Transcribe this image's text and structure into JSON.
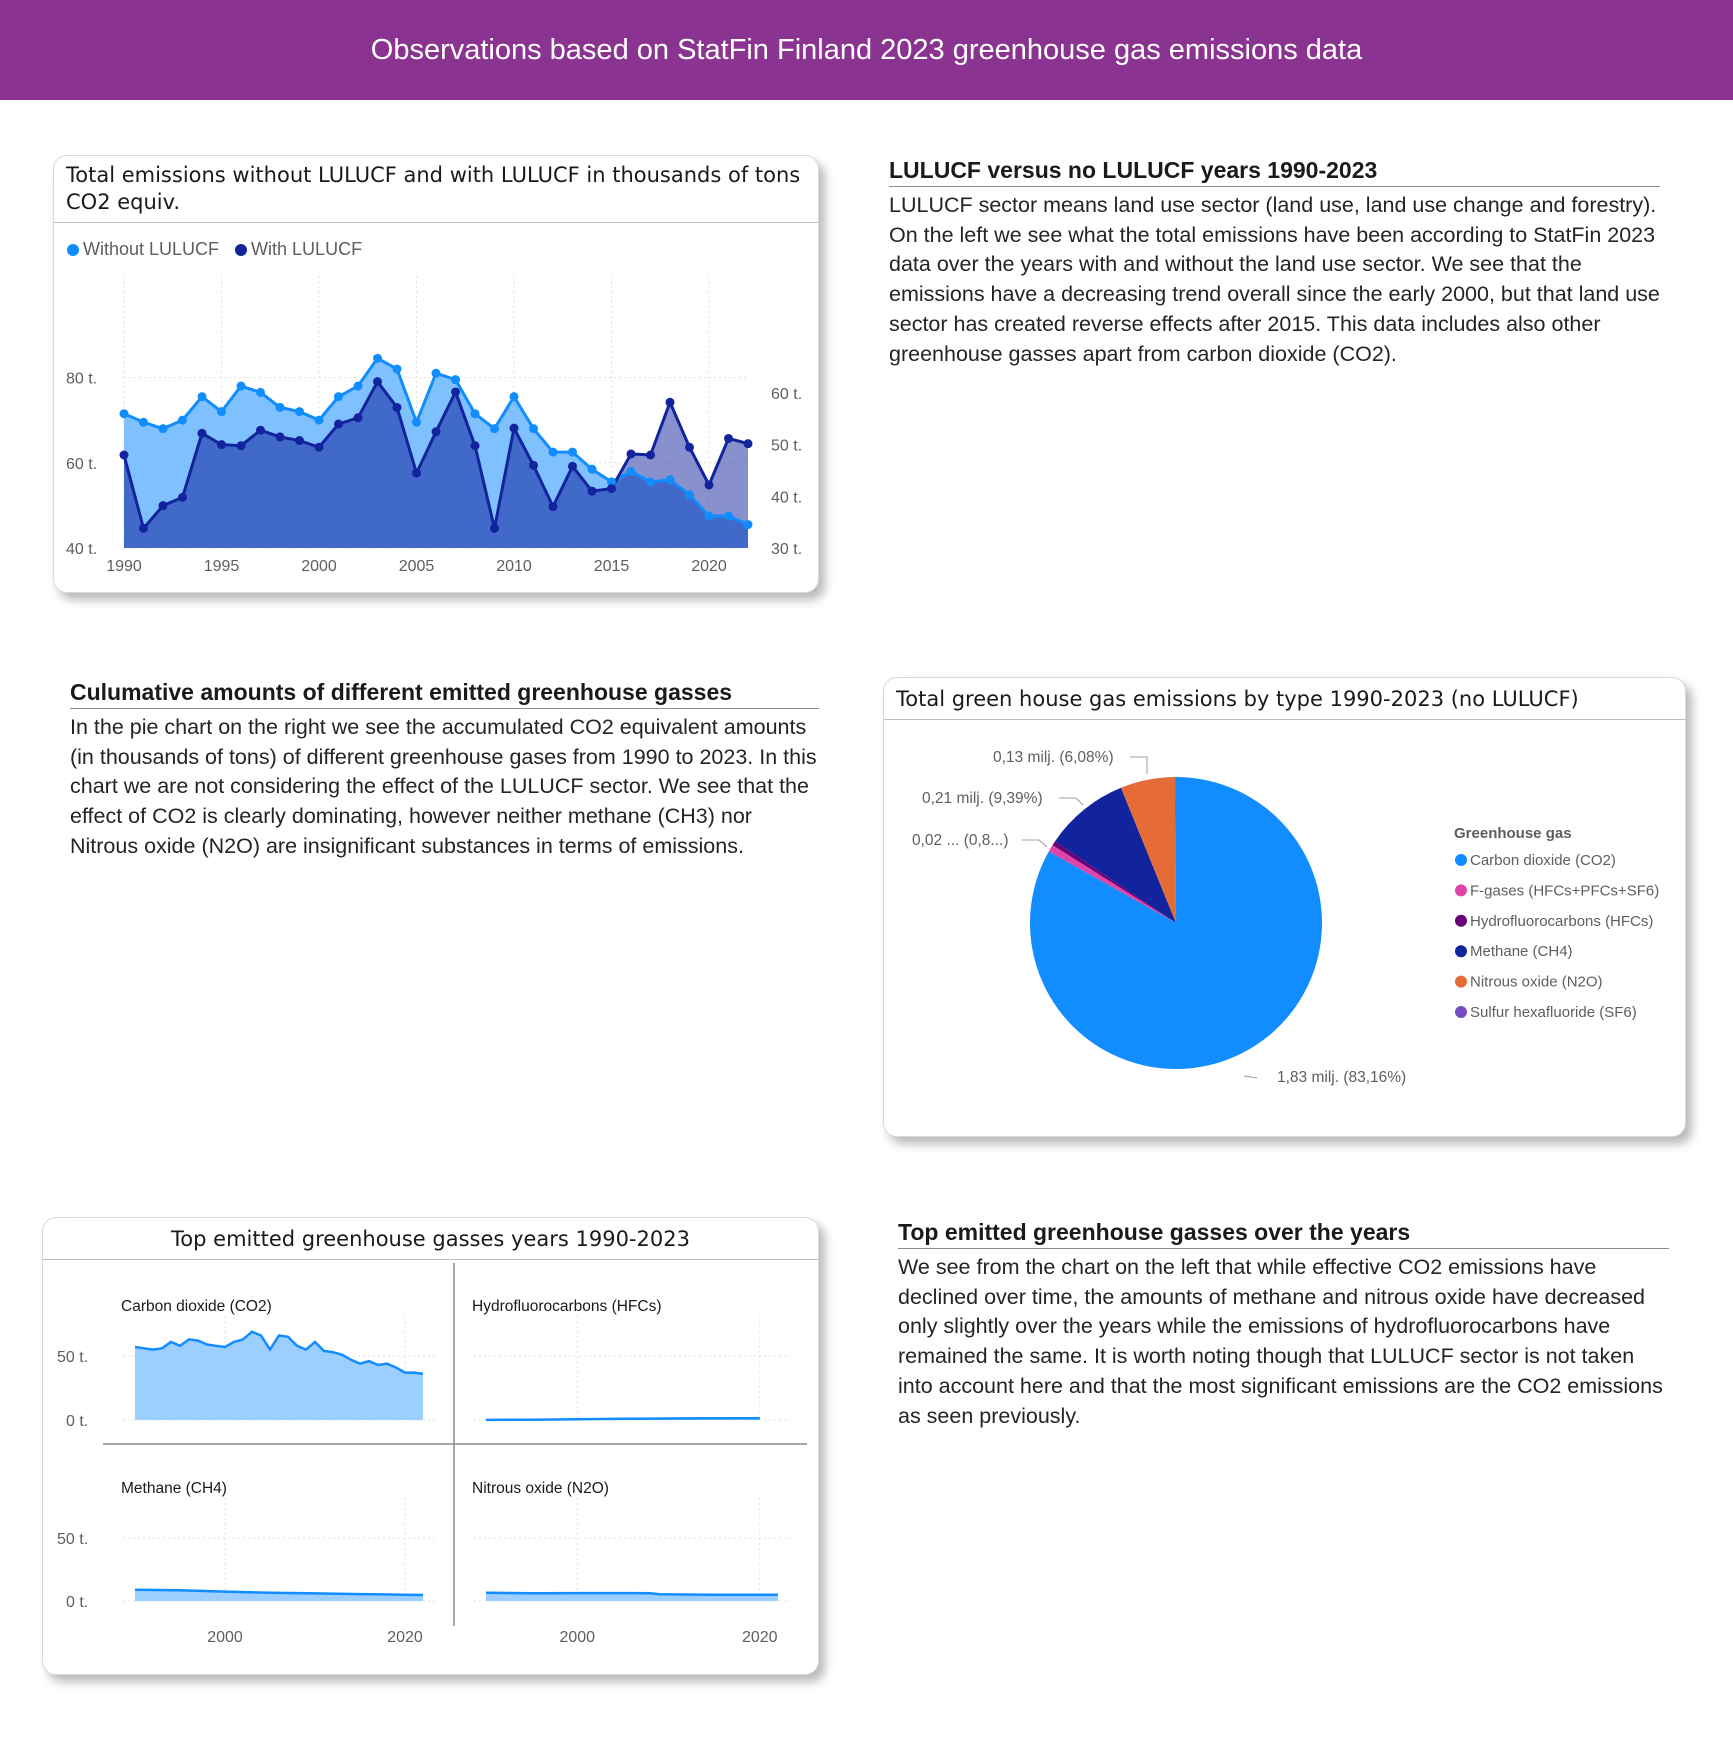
{
  "page_title": "Observations based on StatFin Finland 2023 greenhouse gas emissions data",
  "colors": {
    "banner": "#8a3390",
    "without_lulucf": "#118dff",
    "with_lulucf": "#12239e",
    "co2": "#118dff",
    "fgases": "#e044a7",
    "hfcs": "#6b007b",
    "ch4": "#12239e",
    "n2o": "#e66c37",
    "sf6": "#744ec2"
  },
  "area_card": {
    "title": "Total emissions without LULUCF and with LULUCF in thousands of tons CO2 equiv.",
    "legend": [
      "Without LULUCF",
      "With LULUCF"
    ]
  },
  "text_lulucf": {
    "heading": "LULUCF versus no LULUCF years 1990-2023",
    "body": "LULUCF sector means land use sector (land use, land use change and forestry). On the left we see what the total emissions have been according to StatFin 2023 data over the years with and without the land use sector. We see that the emissions have a decreasing trend overall since the early 2000, but that land use sector has created reverse effects after 2015. This data includes also other greenhouse gasses apart from carbon dioxide (CO2)."
  },
  "text_cumulative": {
    "heading": "Culumative amounts of different emitted greenhouse gasses",
    "body": "In the pie chart on the right we see the accumulated CO2 equivalent amounts (in thousands of tons) of different greenhouse gases from 1990 to 2023. In this chart we are not considering the effect of the LULUCF sector.  We see that the effect of CO2 is clearly dominating, however neither methane (CH3) nor Nitrous oxide (N2O) are insignificant substances in terms of emissions."
  },
  "pie_card": {
    "title": "Total green house gas emissions by type 1990-2023 (no LULUCF)",
    "legend_title": "Greenhouse gas"
  },
  "text_top": {
    "heading": "Top emitted greenhouse gasses over the years",
    "body": "We see from the chart on the left that while effective CO2 emissions have declined over time, the amounts of methane and nitrous oxide have decreased only slightly over the years while the emissions of hydrofluorocarbons have remained the same. It is worth noting though that LULUCF sector is not taken into account here and that the most significant emissions are the CO2 emissions as seen previously."
  },
  "small_card": {
    "title": "Top emitted greenhouse gasses years 1990-2023"
  },
  "chart_data": [
    {
      "id": "lulucf_area",
      "type": "area",
      "title": "Total emissions without LULUCF and with LULUCF in thousands of tons CO2 equiv.",
      "legend_position": "top-left",
      "x": [
        1990,
        1991,
        1992,
        1993,
        1994,
        1995,
        1996,
        1997,
        1998,
        1999,
        2000,
        2001,
        2002,
        2003,
        2004,
        2005,
        2006,
        2007,
        2008,
        2009,
        2010,
        2011,
        2012,
        2013,
        2014,
        2015,
        2016,
        2017,
        2018,
        2019,
        2020,
        2021,
        2022
      ],
      "x_ticks": [
        "1990",
        "1995",
        "2000",
        "2005",
        "2010",
        "2015",
        "2020"
      ],
      "y_left_ticks": [
        "40 t.",
        "60 t.",
        "80 t."
      ],
      "y_right_ticks": [
        "30 t.",
        "40 t.",
        "50 t.",
        "60 t."
      ],
      "y_left_range": [
        40,
        90
      ],
      "y_right_range": [
        30,
        65
      ],
      "grid": true,
      "series": [
        {
          "name": "Without LULUCF",
          "axis": "left",
          "values": [
            71.5,
            69.5,
            68.0,
            70.0,
            75.5,
            72.0,
            78.0,
            76.5,
            73.0,
            72.0,
            70.0,
            75.5,
            78.0,
            84.5,
            82.0,
            69.5,
            81.0,
            79.5,
            71.5,
            68.0,
            75.5,
            68.0,
            62.5,
            62.5,
            58.5,
            55.5,
            58.0,
            55.5,
            56.0,
            52.5,
            47.5,
            47.5,
            45.5
          ]
        },
        {
          "name": "With LULUCF",
          "axis": "right",
          "values": [
            48.0,
            33.8,
            38.2,
            39.8,
            52.2,
            50.0,
            49.8,
            52.8,
            51.5,
            50.8,
            49.5,
            54.0,
            55.2,
            62.2,
            57.2,
            44.5,
            52.5,
            60.2,
            49.8,
            33.8,
            53.2,
            46.0,
            38.0,
            45.8,
            41.0,
            41.5,
            48.2,
            48.0,
            58.2,
            49.5,
            42.2,
            51.2,
            50.2
          ]
        }
      ]
    },
    {
      "id": "gas_pie",
      "type": "pie",
      "title": "Total green house gas emissions by type 1990-2023 (no LULUCF)",
      "legend_title": "Greenhouse gas",
      "legend_position": "right",
      "categories": [
        "Carbon dioxide (CO2)",
        "F-gases (HFCs+PFCs+SF6)",
        "Hydrofluorocarbons (HFCs)",
        "Methane (CH4)",
        "Nitrous oxide (N2O)",
        "Sulfur hexafluoride (SF6)"
      ],
      "values": [
        83.16,
        0.8,
        0.5,
        9.39,
        6.08,
        0.07
      ],
      "data_labels": [
        {
          "category": "Carbon dioxide (CO2)",
          "text": "1,83 milj. (83,16%)"
        },
        {
          "category": "F-gases (HFCs+PFCs+SF6)",
          "text": "0,02 ... (0,8...)"
        },
        {
          "category": "Methane (CH4)",
          "text": "0,21 milj. (9,39%)"
        },
        {
          "category": "Nitrous oxide (N2O)",
          "text": "0,13 milj. (6,08%)"
        }
      ]
    },
    {
      "id": "small_multiples",
      "type": "area",
      "title": "Top emitted greenhouse gasses years 1990-2023",
      "x_ticks": [
        "2000",
        "2020"
      ],
      "y_ticks": [
        "0 t.",
        "50 t."
      ],
      "y_range": [
        0,
        70
      ],
      "x_range": [
        1990,
        2022
      ],
      "panels": [
        {
          "name": "Carbon dioxide (CO2)",
          "x": [
            1990,
            1991,
            1992,
            1993,
            1994,
            1995,
            1996,
            1997,
            1998,
            1999,
            2000,
            2001,
            2002,
            2003,
            2004,
            2005,
            2006,
            2007,
            2008,
            2009,
            2010,
            2011,
            2012,
            2013,
            2014,
            2015,
            2016,
            2017,
            2018,
            2019,
            2020,
            2021,
            2022
          ],
          "values": [
            57,
            56,
            55,
            56,
            61,
            58,
            63,
            62,
            59,
            58,
            57,
            61,
            63,
            69,
            66,
            55,
            66,
            65,
            58,
            55,
            61,
            54,
            53,
            51,
            47,
            44,
            46,
            43,
            44,
            41,
            37,
            37,
            36
          ]
        },
        {
          "name": "Hydrofluorocarbons (HFCs)",
          "x": [
            1990,
            1995,
            2000,
            2005,
            2010,
            2015,
            2020
          ],
          "values": [
            0.1,
            0.2,
            0.6,
            0.9,
            1.2,
            1.3,
            1.3
          ]
        },
        {
          "name": "Methane (CH4)",
          "x": [
            1990,
            1995,
            2000,
            2005,
            2010,
            2015,
            2020,
            2022
          ],
          "values": [
            9,
            8.5,
            7.5,
            6.5,
            6,
            5.5,
            5,
            4.8
          ]
        },
        {
          "name": "Nitrous oxide (N2O)",
          "x": [
            1990,
            1995,
            2000,
            2005,
            2008,
            2009,
            2010,
            2015,
            2020,
            2022
          ],
          "values": [
            6.5,
            6.2,
            6.3,
            6.3,
            6.2,
            5.3,
            5.2,
            5.0,
            4.9,
            4.9
          ]
        }
      ]
    }
  ]
}
